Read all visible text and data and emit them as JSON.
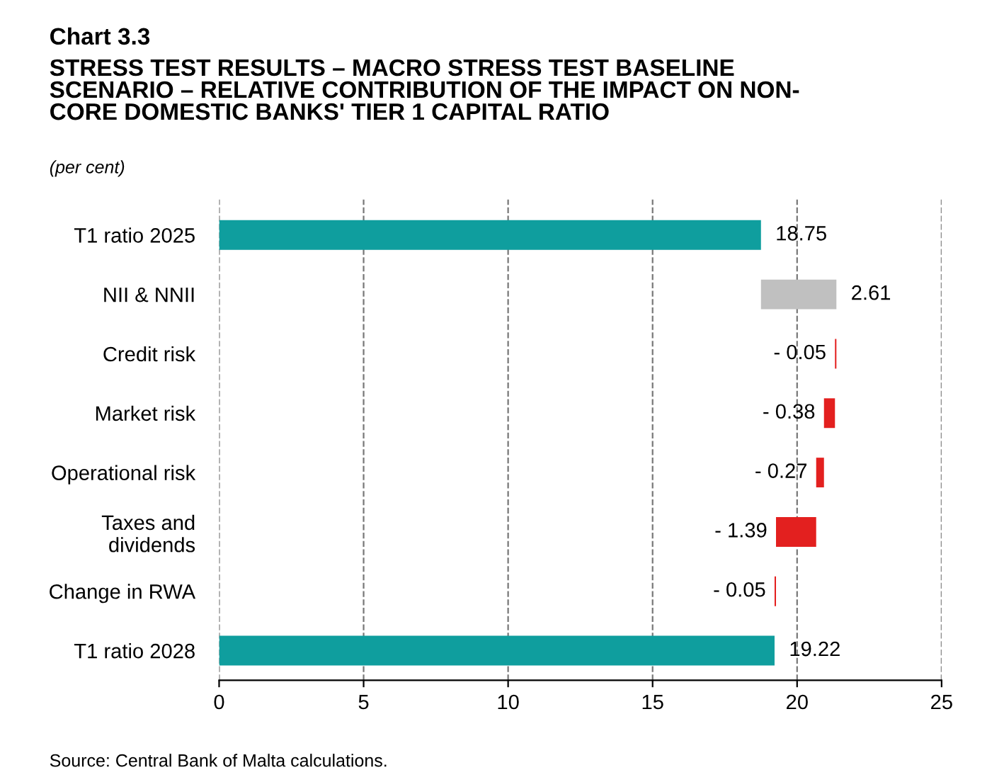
{
  "chart_data": {
    "type": "bar",
    "orientation": "horizontal",
    "title": "Chart 3.3",
    "subtitle": "STRESS TEST RESULTS – MACRO STRESS TEST BASELINE\nSCENARIO – RELATIVE CONTRIBUTION OF THE IMPACT ON NON-\nCORE DOMESTIC BANKS' TIER 1 CAPITAL RATIO",
    "annotations": [
      "(per cent)",
      "Source: Central Bank of Malta calculations."
    ],
    "categories": [
      "T1 ratio 2025",
      "NII & NNII",
      "Credit risk",
      "Market risk",
      "Operational risk",
      "Taxes and\ndividends",
      "Change in RWA",
      "T1 ratio 2028"
    ],
    "values": [
      18.75,
      2.61,
      -0.05,
      -0.38,
      -0.27,
      -1.39,
      -0.05,
      19.22
    ],
    "base": [
      0,
      18.75,
      21.36,
      21.31,
      20.93,
      20.66,
      19.27,
      0
    ],
    "colors": [
      "#0f9e9e",
      "#c0c0c0",
      "#e3201f",
      "#e3201f",
      "#e3201f",
      "#e3201f",
      "#e3201f",
      "#0f9e9e"
    ],
    "value_labels": [
      "18.75",
      "2.61",
      "- 0.05",
      "- 0.38",
      "- 0.27",
      "- 1.39",
      "- 0.05",
      "19.22"
    ],
    "xlim": [
      0,
      25
    ],
    "xticks": [
      0,
      5,
      10,
      15,
      20,
      25
    ],
    "grid": "x",
    "legend": false
  }
}
